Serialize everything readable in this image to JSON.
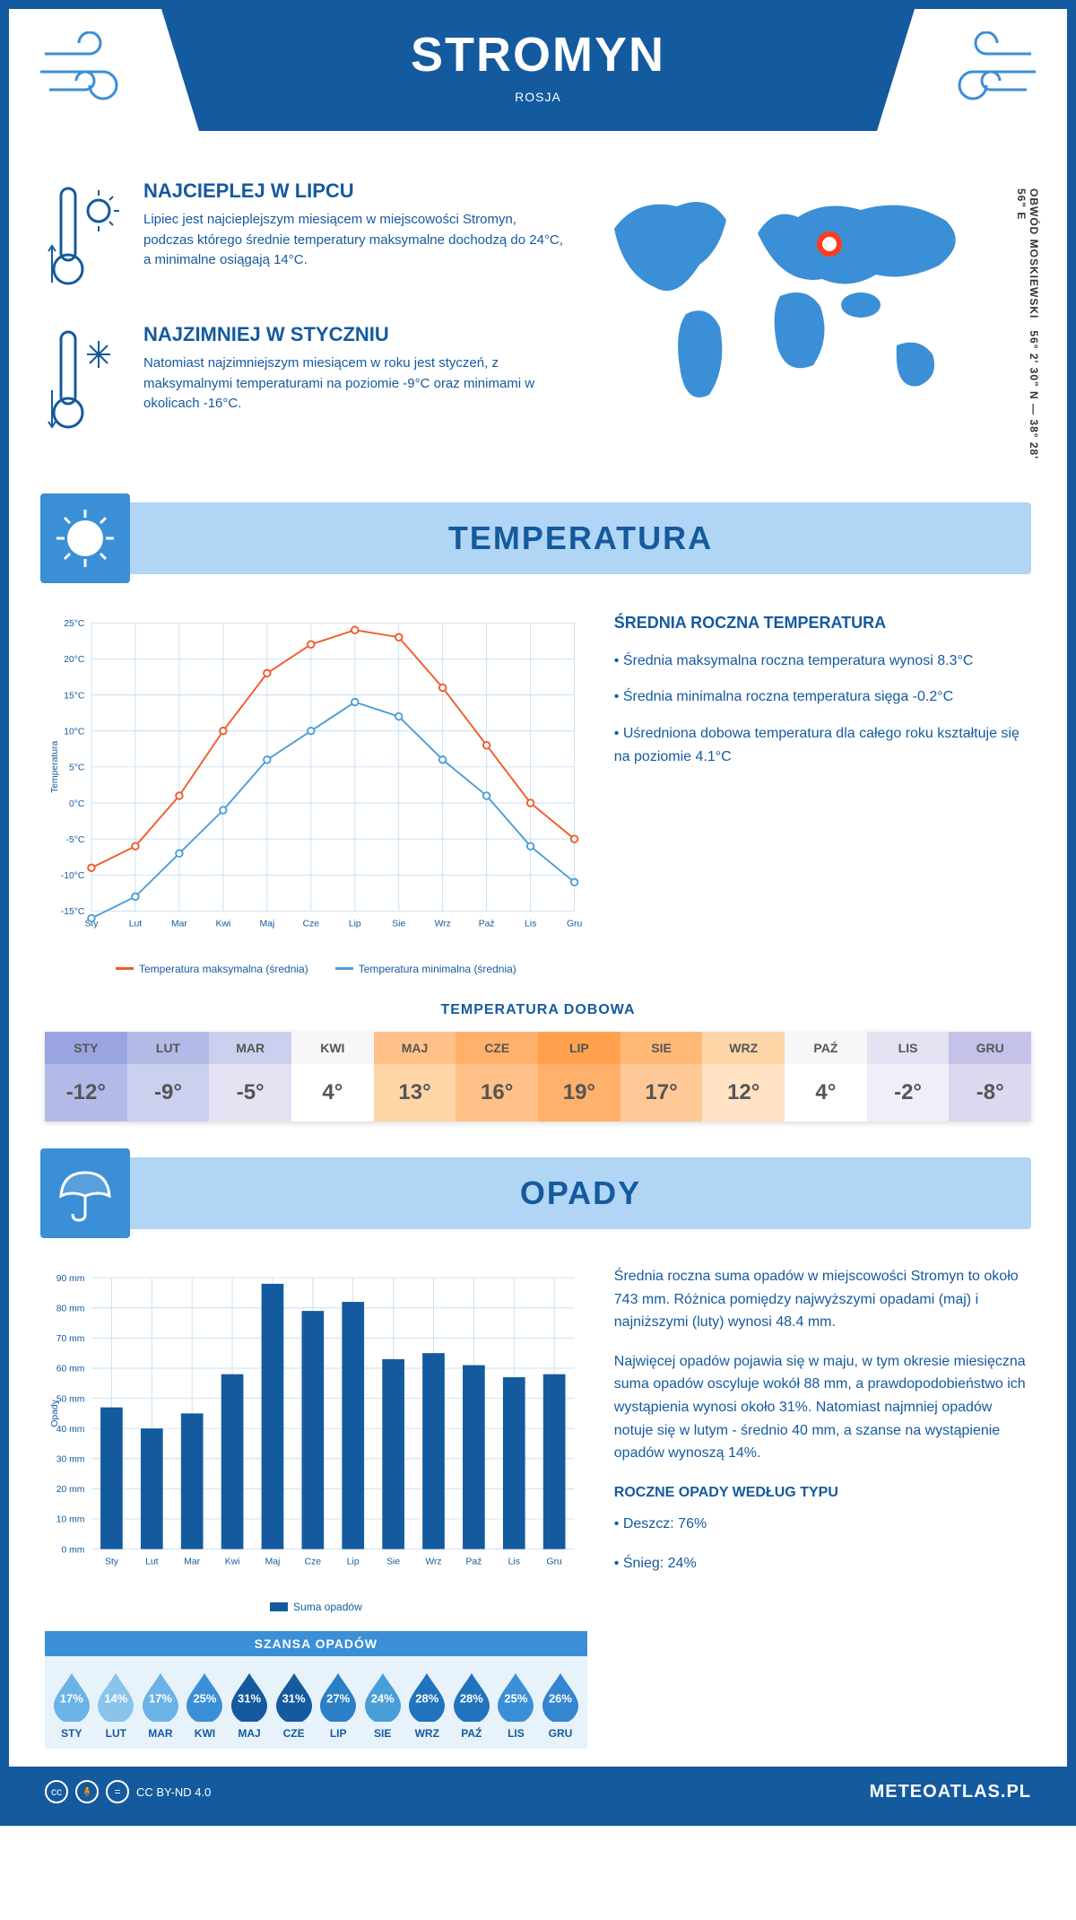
{
  "header": {
    "title": "STROMYN",
    "subtitle": "ROSJA",
    "coords": "56° 2' 30\" N — 38° 28' 56\" E",
    "region": "OBWÓD MOSKIEWSKI"
  },
  "warmest": {
    "title": "NAJCIEPLEJ W LIPCU",
    "text": "Lipiec jest najcieplejszym miesiącem w miejscowości Stromyn, podczas którego średnie temperatury maksymalne dochodzą do 24°C, a minimalne osiągają 14°C."
  },
  "coldest": {
    "title": "NAJZIMNIEJ W STYCZNIU",
    "text": "Natomiast najzimniejszym miesiącem w roku jest styczeń, z maksymalnymi temperaturami na poziomie -9°C oraz minimami w okolicach -16°C."
  },
  "colors": {
    "primary": "#145a9e",
    "light_blue": "#b0d5f5",
    "mid_blue": "#3b8fd6",
    "orange": "#f15a29",
    "chart_blue": "#4a9ed8",
    "grid": "#c9dff2"
  },
  "temperature": {
    "section_title": "TEMPERATURA",
    "chart": {
      "type": "line",
      "months": [
        "Sty",
        "Lut",
        "Mar",
        "Kwi",
        "Maj",
        "Cze",
        "Lip",
        "Sie",
        "Wrz",
        "Paź",
        "Lis",
        "Gru"
      ],
      "ylabel": "Temperatura",
      "ylim": [
        -15,
        25
      ],
      "ytick_step": 5,
      "y_suffix": "°C",
      "series": [
        {
          "name": "Temperatura maksymalna (średnia)",
          "color": "#f15a29",
          "values": [
            -9,
            -6,
            1,
            10,
            18,
            22,
            24,
            23,
            16,
            8,
            0,
            -5
          ]
        },
        {
          "name": "Temperatura minimalna (średnia)",
          "color": "#4a9ed8",
          "values": [
            -16,
            -13,
            -7,
            -1,
            6,
            10,
            14,
            12,
            6,
            1,
            -6,
            -11
          ]
        }
      ],
      "line_width": 2,
      "marker": "circle",
      "marker_size": 4,
      "grid_color": "#c9dff2",
      "background": "#ffffff"
    },
    "annual": {
      "title": "ŚREDNIA ROCZNA TEMPERATURA",
      "items": [
        "• Średnia maksymalna roczna temperatura wynosi 8.3°C",
        "• Średnia minimalna roczna temperatura sięga -0.2°C",
        "• Uśredniona dobowa temperatura dla całego roku kształtuje się na poziomie 4.1°C"
      ]
    },
    "daily": {
      "title": "TEMPERATURA DOBOWA",
      "months": [
        "STY",
        "LUT",
        "MAR",
        "KWI",
        "MAJ",
        "CZE",
        "LIP",
        "SIE",
        "WRZ",
        "PAŹ",
        "LIS",
        "GRU"
      ],
      "values": [
        "-12°",
        "-9°",
        "-5°",
        "4°",
        "13°",
        "16°",
        "19°",
        "17°",
        "12°",
        "4°",
        "-2°",
        "-8°"
      ],
      "header_colors": [
        "#9aa4e0",
        "#b3bae8",
        "#ccd0ef",
        "#f7f7f9",
        "#ffc188",
        "#ffb06a",
        "#ffa14d",
        "#ffb875",
        "#ffd6a8",
        "#f7f7f9",
        "#e4e2f3",
        "#c5c2ea"
      ],
      "value_colors": [
        "#b3bae8",
        "#ccd0ef",
        "#e4e2f3",
        "#ffffff",
        "#ffd6a8",
        "#ffc188",
        "#ffb06a",
        "#ffc997",
        "#ffe3c4",
        "#ffffff",
        "#f0eef9",
        "#ddd9f1"
      ],
      "text_color": "#555"
    }
  },
  "precip": {
    "section_title": "OPADY",
    "chart": {
      "type": "bar",
      "months": [
        "Sty",
        "Lut",
        "Mar",
        "Kwi",
        "Maj",
        "Cze",
        "Lip",
        "Sie",
        "Wrz",
        "Paź",
        "Lis",
        "Gru"
      ],
      "ylabel": "Opady",
      "ylim": [
        0,
        90
      ],
      "ytick_step": 10,
      "y_suffix": " mm",
      "values": [
        47,
        40,
        45,
        58,
        88,
        79,
        82,
        63,
        65,
        61,
        57,
        58
      ],
      "bar_color": "#145a9e",
      "grid_color": "#c9dff2",
      "legend": "Suma opadów",
      "bar_width": 0.55
    },
    "text1": "Średnia roczna suma opadów w miejscowości Stromyn to około 743 mm. Różnica pomiędzy najwyższymi opadami (maj) i najniższymi (luty) wynosi 48.4 mm.",
    "text2": "Najwięcej opadów pojawia się w maju, w tym okresie miesięczna suma opadów oscyluje wokół 88 mm, a prawdopodobieństwo ich wystąpienia wynosi około 31%. Natomiast najmniej opadów notuje się w lutym - średnio 40 mm, a szanse na wystąpienie opadów wynoszą 14%.",
    "chance": {
      "title": "SZANSA OPADÓW",
      "months": [
        "STY",
        "LUT",
        "MAR",
        "KWI",
        "MAJ",
        "CZE",
        "LIP",
        "SIE",
        "WRZ",
        "PAŹ",
        "LIS",
        "GRU"
      ],
      "values": [
        "17%",
        "14%",
        "17%",
        "25%",
        "31%",
        "31%",
        "27%",
        "24%",
        "28%",
        "28%",
        "25%",
        "26%"
      ],
      "drop_colors": [
        "#6bb3e6",
        "#8ac4ec",
        "#6bb3e6",
        "#3b8fd6",
        "#145a9e",
        "#145a9e",
        "#2b7fc6",
        "#4a9ed8",
        "#2273bd",
        "#2273bd",
        "#3b8fd6",
        "#3386cf"
      ]
    },
    "by_type": {
      "title": "ROCZNE OPADY WEDŁUG TYPU",
      "items": [
        "• Deszcz: 76%",
        "• Śnieg: 24%"
      ]
    }
  },
  "footer": {
    "license": "CC BY-ND 4.0",
    "brand": "METEOATLAS.PL"
  }
}
